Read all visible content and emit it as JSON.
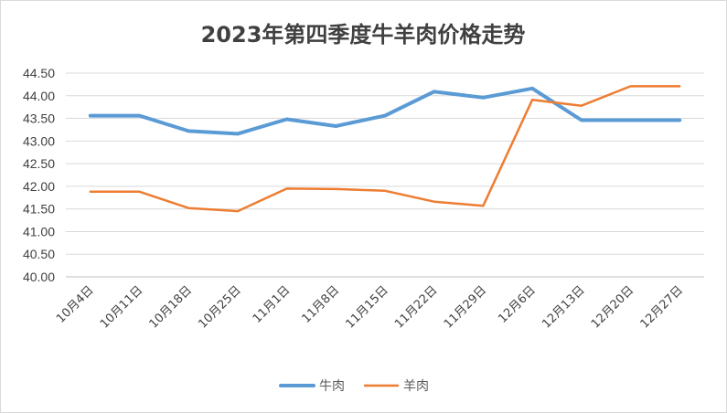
{
  "chart_data": {
    "type": "line",
    "title": "2023年第四季度牛羊肉价格走势",
    "xlabel": "",
    "ylabel": "",
    "categories": [
      "10月4日",
      "10月11日",
      "10月18日",
      "10月25日",
      "11月1日",
      "11月8日",
      "11月15日",
      "11月22日",
      "11月29日",
      "12月6日",
      "12月13日",
      "12月20日",
      "12月27日"
    ],
    "ylim": [
      40.0,
      44.5
    ],
    "yticks": [
      "40.00",
      "40.50",
      "41.00",
      "41.50",
      "42.00",
      "42.50",
      "43.00",
      "43.50",
      "44.00",
      "44.50"
    ],
    "grid": true,
    "legend_position": "bottom",
    "series": [
      {
        "name": "牛肉",
        "color": "#5B9BD5",
        "values": [
          43.56,
          43.56,
          43.22,
          43.16,
          43.48,
          43.33,
          43.56,
          44.09,
          43.96,
          44.16,
          43.46,
          43.46,
          43.46
        ]
      },
      {
        "name": "羊肉",
        "color": "#ED7D31",
        "values": [
          41.88,
          41.88,
          41.52,
          41.45,
          41.95,
          41.94,
          41.9,
          41.66,
          41.57,
          43.91,
          43.78,
          44.21,
          44.21
        ]
      }
    ]
  }
}
